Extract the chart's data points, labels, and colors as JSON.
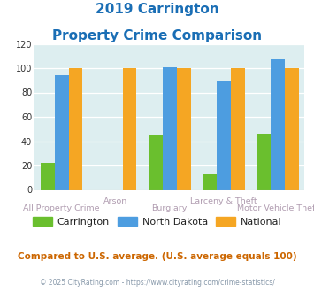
{
  "title_line1": "2019 Carrington",
  "title_line2": "Property Crime Comparison",
  "categories": [
    "All Property Crime",
    "Arson",
    "Burglary",
    "Larceny & Theft",
    "Motor Vehicle Theft"
  ],
  "carrington": [
    22,
    0,
    45,
    13,
    46
  ],
  "north_dakota": [
    94,
    0,
    101,
    90,
    107
  ],
  "national": [
    100,
    100,
    100,
    100,
    100
  ],
  "color_carrington": "#6abf2e",
  "color_north_dakota": "#4d9de0",
  "color_national": "#f5a623",
  "ylim": [
    0,
    120
  ],
  "yticks": [
    0,
    20,
    40,
    60,
    80,
    100,
    120
  ],
  "bg_color": "#ddeef0",
  "title_color": "#1a6eb5",
  "xlabel_color": "#b09cb0",
  "footer_text": "© 2025 CityRating.com - https://www.cityrating.com/crime-statistics/",
  "note_text": "Compared to U.S. average. (U.S. average equals 100)",
  "note_color": "#cc6600",
  "footer_color": "#8899aa",
  "legend_text_color": "#222222"
}
